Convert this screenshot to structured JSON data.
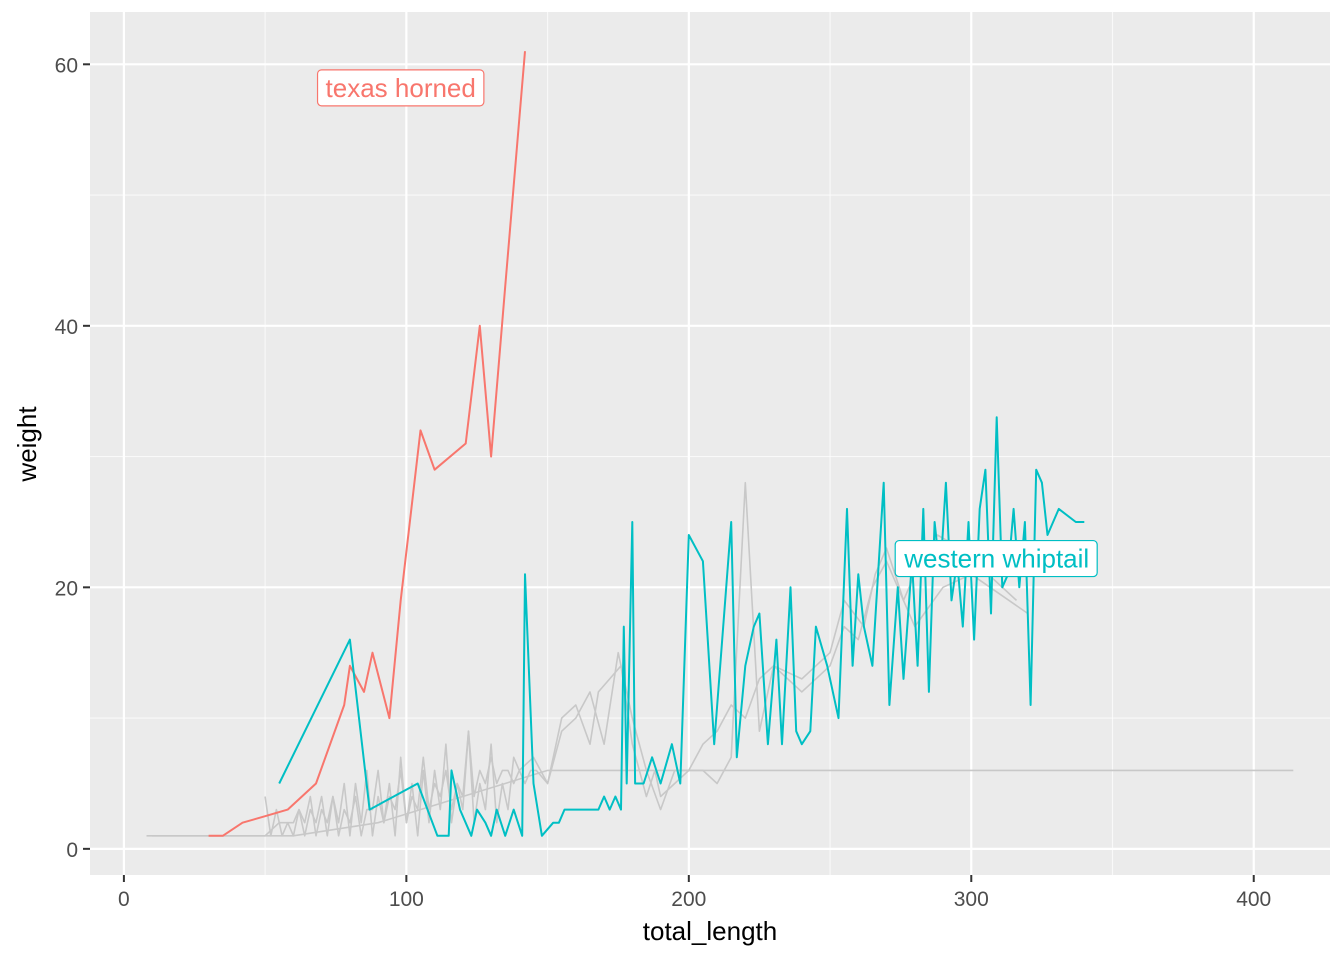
{
  "chart_data": {
    "type": "line",
    "xlabel": "total_length",
    "ylabel": "weight",
    "xlim": [
      -12,
      427
    ],
    "ylim": [
      -2,
      64
    ],
    "x_ticks": [
      0,
      100,
      200,
      300,
      400
    ],
    "y_ticks": [
      0,
      20,
      40,
      60
    ],
    "x_tick_labels": [
      "0",
      "100",
      "200",
      "300",
      "400"
    ],
    "y_tick_labels": [
      "0",
      "20",
      "40",
      "60"
    ],
    "grid": true,
    "legend": "none",
    "colors": {
      "panel_bg": "#EBEBEB",
      "grid_major": "#FFFFFF",
      "background_series": "#C8C8C8",
      "texas_horned": "#F8766D",
      "western_whiptail": "#00BFC4"
    },
    "series": [
      {
        "name": "texas horned",
        "color": "#F8766D",
        "label_at": [
          98,
          58.2
        ],
        "points": [
          [
            30,
            1
          ],
          [
            35,
            1
          ],
          [
            42,
            2
          ],
          [
            50,
            2.5
          ],
          [
            58,
            3
          ],
          [
            68,
            5
          ],
          [
            78,
            11
          ],
          [
            80,
            14
          ],
          [
            85,
            12
          ],
          [
            88,
            15
          ],
          [
            94,
            10
          ],
          [
            98,
            19
          ],
          [
            105,
            32
          ],
          [
            110,
            29
          ],
          [
            121,
            31
          ],
          [
            126,
            40
          ],
          [
            130,
            30
          ],
          [
            135,
            43
          ],
          [
            142,
            61
          ]
        ]
      },
      {
        "name": "western whiptail",
        "color": "#00BFC4",
        "label_at": [
          309,
          22.2
        ],
        "points": [
          [
            55,
            5
          ],
          [
            80,
            16
          ],
          [
            87,
            3
          ],
          [
            104,
            5
          ],
          [
            111,
            1
          ],
          [
            115,
            1
          ],
          [
            116,
            6
          ],
          [
            119,
            3
          ],
          [
            123,
            1
          ],
          [
            125,
            3
          ],
          [
            128,
            2
          ],
          [
            130,
            1
          ],
          [
            132,
            3
          ],
          [
            135,
            1
          ],
          [
            138,
            3
          ],
          [
            141,
            1
          ],
          [
            142,
            21
          ],
          [
            145,
            5
          ],
          [
            148,
            1
          ],
          [
            152,
            2
          ],
          [
            154,
            2
          ],
          [
            156,
            3
          ],
          [
            164,
            3
          ],
          [
            168,
            3
          ],
          [
            170,
            4
          ],
          [
            172,
            3
          ],
          [
            174,
            4
          ],
          [
            176,
            3
          ],
          [
            177,
            17
          ],
          [
            178,
            5
          ],
          [
            180,
            25
          ],
          [
            181,
            5
          ],
          [
            184,
            5
          ],
          [
            187,
            7
          ],
          [
            190,
            5
          ],
          [
            194,
            8
          ],
          [
            197,
            5
          ],
          [
            200,
            24
          ],
          [
            205,
            22
          ],
          [
            209,
            8
          ],
          [
            215,
            25
          ],
          [
            217,
            7
          ],
          [
            220,
            14
          ],
          [
            223,
            17
          ],
          [
            225,
            18
          ],
          [
            228,
            8
          ],
          [
            231,
            16
          ],
          [
            233,
            8
          ],
          [
            236,
            20
          ],
          [
            238,
            9
          ],
          [
            240,
            8
          ],
          [
            243,
            9
          ],
          [
            245,
            17
          ],
          [
            249,
            14
          ],
          [
            253,
            10
          ],
          [
            256,
            26
          ],
          [
            258,
            14
          ],
          [
            260,
            21
          ],
          [
            262,
            17
          ],
          [
            265,
            14
          ],
          [
            269,
            28
          ],
          [
            271,
            11
          ],
          [
            274,
            20
          ],
          [
            276,
            13
          ],
          [
            279,
            22
          ],
          [
            281,
            14
          ],
          [
            283,
            26
          ],
          [
            285,
            12
          ],
          [
            287,
            25
          ],
          [
            289,
            21
          ],
          [
            291,
            28
          ],
          [
            293,
            19
          ],
          [
            295,
            22
          ],
          [
            297,
            17
          ],
          [
            299,
            25
          ],
          [
            301,
            16
          ],
          [
            303,
            26
          ],
          [
            305,
            29
          ],
          [
            307,
            18
          ],
          [
            309,
            33
          ],
          [
            311,
            20
          ],
          [
            313,
            21
          ],
          [
            315,
            26
          ],
          [
            317,
            20
          ],
          [
            319,
            25
          ],
          [
            321,
            11
          ],
          [
            323,
            29
          ],
          [
            325,
            28
          ],
          [
            327,
            24
          ],
          [
            331,
            26
          ],
          [
            337,
            25
          ],
          [
            340,
            25
          ]
        ]
      },
      {
        "name": "",
        "color": "#C8C8C8",
        "points": [
          [
            8,
            1
          ],
          [
            45,
            1
          ],
          [
            50,
            1
          ],
          [
            55,
            2
          ],
          [
            60,
            2
          ],
          [
            62,
            3
          ],
          [
            64,
            1
          ],
          [
            66,
            3
          ],
          [
            68,
            2
          ],
          [
            70,
            4
          ],
          [
            72,
            1
          ],
          [
            74,
            4
          ],
          [
            76,
            2
          ],
          [
            78,
            5
          ],
          [
            80,
            1
          ],
          [
            82,
            5
          ],
          [
            84,
            2
          ],
          [
            86,
            6
          ],
          [
            88,
            1
          ],
          [
            90,
            4
          ],
          [
            92,
            2
          ],
          [
            94,
            5
          ],
          [
            96,
            1
          ],
          [
            98,
            7
          ],
          [
            100,
            2
          ],
          [
            102,
            5
          ],
          [
            104,
            1
          ],
          [
            106,
            6
          ],
          [
            108,
            2
          ],
          [
            110,
            6
          ],
          [
            112,
            3
          ],
          [
            114,
            8
          ],
          [
            116,
            2
          ],
          [
            118,
            5
          ],
          [
            120,
            3
          ],
          [
            122,
            9
          ],
          [
            124,
            2
          ],
          [
            126,
            5
          ],
          [
            128,
            3
          ],
          [
            130,
            8
          ],
          [
            132,
            2
          ],
          [
            134,
            5
          ],
          [
            136,
            3
          ],
          [
            138,
            7
          ],
          [
            140,
            6
          ],
          [
            145,
            7
          ],
          [
            150,
            5
          ],
          [
            155,
            9
          ],
          [
            160,
            10
          ],
          [
            165,
            12
          ],
          [
            170,
            8
          ],
          [
            175,
            15
          ],
          [
            180,
            10
          ],
          [
            185,
            6
          ],
          [
            190,
            3
          ],
          [
            195,
            6
          ],
          [
            200,
            6
          ],
          [
            205,
            6
          ],
          [
            210,
            5
          ],
          [
            215,
            7
          ],
          [
            220,
            28
          ],
          [
            225,
            9
          ],
          [
            230,
            14
          ],
          [
            240,
            12
          ],
          [
            250,
            14
          ],
          [
            255,
            17
          ],
          [
            260,
            16
          ],
          [
            265,
            20
          ],
          [
            270,
            22
          ],
          [
            280,
            17
          ],
          [
            290,
            20
          ],
          [
            300,
            21
          ],
          [
            320,
            18
          ]
        ]
      },
      {
        "name": "",
        "color": "#C8C8C8",
        "points": [
          [
            10,
            1
          ],
          [
            60,
            1
          ],
          [
            90,
            2
          ],
          [
            120,
            4
          ],
          [
            150,
            6
          ],
          [
            180,
            6
          ],
          [
            200,
            6
          ],
          [
            300,
            6
          ],
          [
            414,
            6
          ]
        ]
      },
      {
        "name": "",
        "color": "#C8C8C8",
        "points": [
          [
            50,
            4
          ],
          [
            52,
            1
          ],
          [
            54,
            3
          ],
          [
            56,
            1
          ],
          [
            58,
            2
          ],
          [
            60,
            1
          ],
          [
            62,
            3
          ],
          [
            64,
            2
          ],
          [
            66,
            4
          ],
          [
            68,
            1
          ],
          [
            70,
            3
          ],
          [
            72,
            2
          ],
          [
            74,
            4
          ],
          [
            76,
            1
          ],
          [
            78,
            3
          ],
          [
            80,
            2
          ],
          [
            82,
            4
          ],
          [
            84,
            1
          ],
          [
            86,
            3
          ],
          [
            88,
            3
          ],
          [
            90,
            6
          ],
          [
            92,
            2
          ],
          [
            94,
            4
          ],
          [
            96,
            3
          ],
          [
            98,
            6
          ],
          [
            100,
            2
          ],
          [
            102,
            4
          ],
          [
            104,
            3
          ],
          [
            106,
            7
          ],
          [
            108,
            3
          ],
          [
            110,
            5
          ],
          [
            112,
            4
          ],
          [
            114,
            6
          ],
          [
            116,
            3
          ],
          [
            118,
            5
          ],
          [
            120,
            4
          ],
          [
            122,
            9
          ],
          [
            124,
            4
          ],
          [
            126,
            6
          ],
          [
            128,
            5
          ],
          [
            130,
            7
          ],
          [
            132,
            5
          ],
          [
            134,
            6
          ],
          [
            136,
            6
          ],
          [
            138,
            5
          ],
          [
            140,
            6
          ],
          [
            142,
            5
          ],
          [
            144,
            6
          ],
          [
            146,
            6
          ],
          [
            150,
            5
          ],
          [
            155,
            10
          ],
          [
            160,
            11
          ],
          [
            165,
            8
          ],
          [
            168,
            12
          ],
          [
            172,
            13
          ],
          [
            176,
            14
          ],
          [
            180,
            8
          ],
          [
            185,
            4
          ],
          [
            188,
            6
          ],
          [
            190,
            4
          ],
          [
            195,
            5
          ],
          [
            200,
            6
          ],
          [
            205,
            8
          ],
          [
            210,
            9
          ],
          [
            215,
            11
          ],
          [
            220,
            10
          ],
          [
            225,
            13
          ],
          [
            230,
            14
          ],
          [
            240,
            13
          ],
          [
            250,
            15
          ],
          [
            255,
            19
          ],
          [
            262,
            17
          ],
          [
            266,
            21
          ],
          [
            270,
            23
          ],
          [
            276,
            19
          ],
          [
            282,
            22
          ],
          [
            288,
            24
          ],
          [
            296,
            23
          ],
          [
            306,
            21
          ],
          [
            316,
            19
          ]
        ]
      }
    ]
  }
}
